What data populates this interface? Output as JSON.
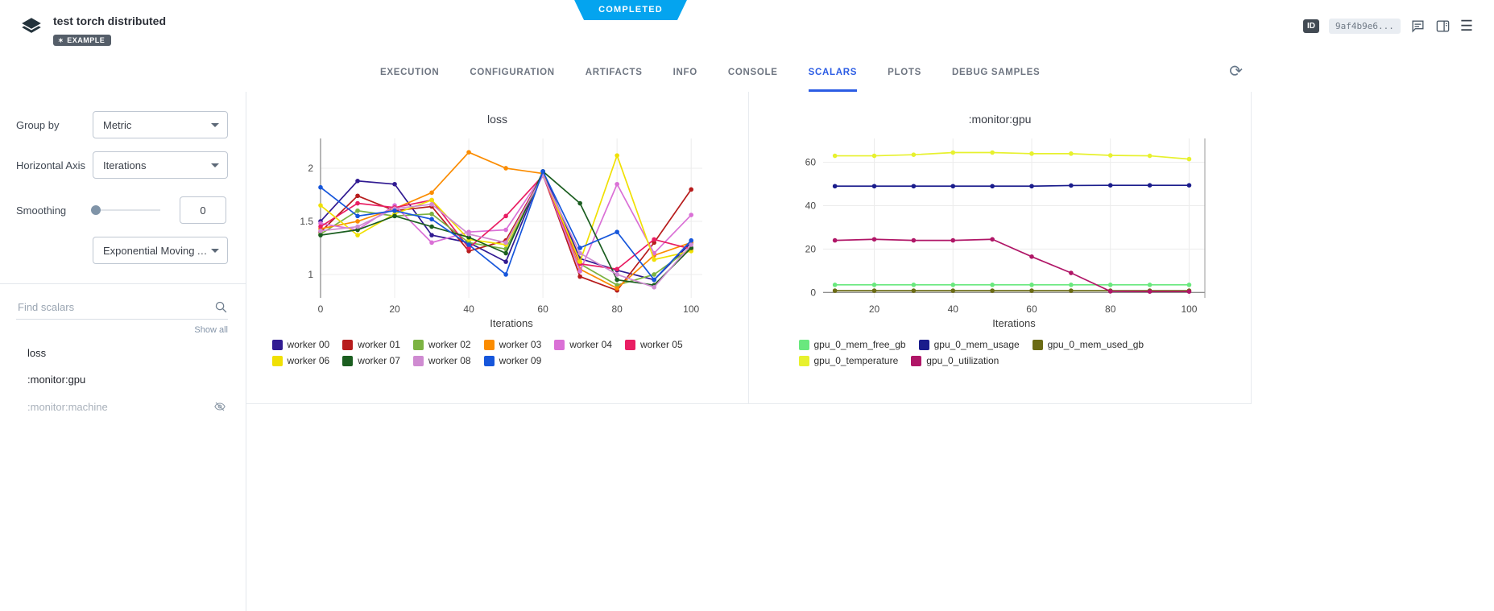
{
  "colors": {
    "accent": "#2b5ce4",
    "ribbon": "#04a4ef"
  },
  "status_ribbon": "COMPLETED",
  "header": {
    "title": "test torch distributed",
    "example_badge": "EXAMPLE",
    "id_label": "ID",
    "id_value": "9af4b9e6..."
  },
  "tabs": [
    "EXECUTION",
    "CONFIGURATION",
    "ARTIFACTS",
    "INFO",
    "CONSOLE",
    "SCALARS",
    "PLOTS",
    "DEBUG SAMPLES"
  ],
  "sidebar": {
    "group_by": {
      "label": "Group by",
      "value": "Metric"
    },
    "horizontal_axis": {
      "label": "Horizontal Axis",
      "value": "Iterations"
    },
    "smoothing": {
      "label": "Smoothing",
      "value": "0",
      "type": "Exponential Moving Ave..."
    },
    "search": {
      "placeholder": "Find scalars"
    },
    "show_all": "Show all",
    "scalars": [
      {
        "label": "loss",
        "hidden": false
      },
      {
        "label": ":monitor:gpu",
        "hidden": false
      },
      {
        "label": ":monitor:machine",
        "hidden": true
      }
    ]
  },
  "chart_data": [
    {
      "type": "line",
      "title": "loss",
      "xlabel": "Iterations",
      "x": [
        0,
        10,
        20,
        30,
        40,
        50,
        60,
        70,
        80,
        90,
        100
      ],
      "xticks": [
        0,
        20,
        40,
        60,
        80,
        100
      ],
      "yticks": [
        1,
        1.5,
        2
      ],
      "xlim": [
        0,
        103
      ],
      "ylim": [
        0.78,
        2.28
      ],
      "zeroline_x": 0,
      "grid": true,
      "legend_position": "bottom",
      "series": [
        {
          "name": "worker 00",
          "color": "#311b92",
          "values": [
            1.5,
            1.88,
            1.85,
            1.37,
            1.3,
            1.12,
            1.97,
            1.15,
            1.04,
            0.95,
            1.3
          ]
        },
        {
          "name": "worker 01",
          "color": "#b71c1c",
          "values": [
            1.4,
            1.74,
            1.6,
            1.64,
            1.22,
            1.32,
            1.94,
            0.98,
            0.85,
            1.3,
            1.8
          ]
        },
        {
          "name": "worker 02",
          "color": "#7cb342",
          "values": [
            1.38,
            1.6,
            1.55,
            1.57,
            1.3,
            1.24,
            1.94,
            1.1,
            0.9,
            1.0,
            1.25
          ]
        },
        {
          "name": "worker 03",
          "color": "#fb8c00",
          "values": [
            1.43,
            1.5,
            1.62,
            1.77,
            2.15,
            2.0,
            1.95,
            1.05,
            0.87,
            1.18,
            1.3
          ]
        },
        {
          "name": "worker 04",
          "color": "#da70d6",
          "values": [
            1.48,
            1.42,
            1.65,
            1.3,
            1.4,
            1.42,
            1.94,
            1.03,
            1.85,
            1.2,
            1.56
          ]
        },
        {
          "name": "worker 05",
          "color": "#e91e63",
          "values": [
            1.45,
            1.67,
            1.63,
            1.7,
            1.25,
            1.55,
            1.93,
            1.1,
            1.05,
            1.33,
            1.24
          ]
        },
        {
          "name": "worker 06",
          "color": "#f0e003",
          "values": [
            1.65,
            1.37,
            1.57,
            1.7,
            1.33,
            1.28,
            1.94,
            1.12,
            2.12,
            1.14,
            1.22
          ]
        },
        {
          "name": "worker 07",
          "color": "#1b5e20",
          "values": [
            1.37,
            1.42,
            1.55,
            1.45,
            1.35,
            1.2,
            1.97,
            1.67,
            0.95,
            0.9,
            1.25
          ]
        },
        {
          "name": "worker 08",
          "color": "#cf8bd1",
          "values": [
            1.41,
            1.45,
            1.62,
            1.66,
            1.38,
            1.3,
            1.93,
            1.2,
            1.0,
            0.88,
            1.28
          ]
        },
        {
          "name": "worker 09",
          "color": "#1656db",
          "values": [
            1.82,
            1.55,
            1.6,
            1.52,
            1.28,
            1.0,
            1.97,
            1.25,
            1.4,
            0.95,
            1.32
          ]
        }
      ]
    },
    {
      "type": "line",
      "title": ":monitor:gpu",
      "xlabel": "Iterations",
      "x": [
        10,
        20,
        30,
        40,
        50,
        60,
        70,
        80,
        90,
        100
      ],
      "xticks": [
        20,
        40,
        60,
        80,
        100
      ],
      "yticks": [
        0,
        20,
        40,
        60
      ],
      "xlim": [
        7,
        104
      ],
      "ylim": [
        -2.5,
        71
      ],
      "zeroline_y": 0,
      "axis_line_right": true,
      "grid": true,
      "legend_position": "bottom",
      "series": [
        {
          "name": "gpu_0_mem_free_gb",
          "color": "#69e87e",
          "values": [
            3.5,
            3.5,
            3.5,
            3.5,
            3.5,
            3.5,
            3.5,
            3.5,
            3.5,
            3.5
          ]
        },
        {
          "name": "gpu_0_mem_usage",
          "color": "#1a1c8c",
          "values": [
            49,
            49,
            49,
            49,
            49,
            49,
            49.3,
            49.4,
            49.4,
            49.4
          ]
        },
        {
          "name": "gpu_0_mem_used_gb",
          "color": "#6b6b14",
          "values": [
            0.8,
            0.8,
            0.8,
            0.8,
            0.8,
            0.8,
            0.8,
            0.8,
            0.8,
            0.8
          ]
        },
        {
          "name": "gpu_0_temperature",
          "color": "#e7f12e",
          "values": [
            63,
            63,
            63.5,
            64.5,
            64.5,
            64,
            64,
            63.2,
            63,
            61.5
          ]
        },
        {
          "name": "gpu_0_utilization",
          "color": "#b01667",
          "values": [
            24,
            24.5,
            24,
            24,
            24.5,
            16.5,
            9,
            0.5,
            0.4,
            0.4
          ]
        }
      ]
    }
  ]
}
